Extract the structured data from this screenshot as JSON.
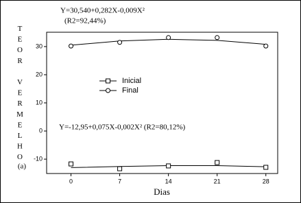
{
  "chart_data": {
    "type": "scatter",
    "x": [
      0,
      7,
      14,
      21,
      28
    ],
    "series": [
      {
        "name": "Inicial",
        "marker": "square",
        "color": "#000000",
        "values": [
          -11.7,
          -13.4,
          -12.4,
          -11.2,
          -12.9
        ],
        "fit": [
          -13.0,
          -12.6,
          -12.3,
          -12.3,
          -12.7
        ]
      },
      {
        "name": "Final",
        "marker": "circle",
        "color": "#000000",
        "values": [
          30.2,
          31.5,
          33.2,
          33.2,
          30.2
        ],
        "fit": [
          30.5,
          32.0,
          32.6,
          32.2,
          30.8
        ]
      }
    ],
    "xlim": [
      -3.5,
      29.7
    ],
    "ylim": [
      -15.1,
      35.1
    ],
    "xticks": [
      0,
      7,
      14,
      21,
      28
    ],
    "yticks": [
      -10,
      0,
      10,
      20,
      30
    ],
    "xlabel": "Dias",
    "ylabel": "TEOR VERMELHO",
    "panel_label": "(a)",
    "annotations": [
      "Y=30,540+0,282X-0,009X²",
      "(R2=92,44%)",
      "Y=-12,95+0,075X-0,002X² (R2=80,12%)"
    ]
  }
}
